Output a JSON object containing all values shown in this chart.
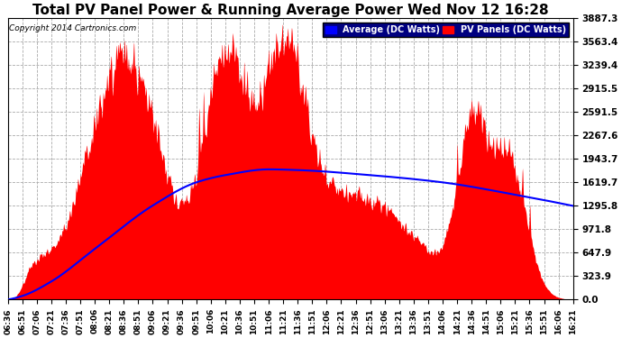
{
  "title": "Total PV Panel Power & Running Average Power Wed Nov 12 16:28",
  "copyright": "Copyright 2014 Cartronics.com",
  "ylabel_right_ticks": [
    0.0,
    323.9,
    647.9,
    971.8,
    1295.8,
    1619.7,
    1943.7,
    2267.6,
    2591.5,
    2915.5,
    3239.4,
    3563.4,
    3887.3
  ],
  "ymax": 3887.3,
  "ymin": 0.0,
  "x_tick_labels": [
    "06:36",
    "06:51",
    "07:06",
    "07:21",
    "07:36",
    "07:51",
    "08:06",
    "08:21",
    "08:36",
    "08:51",
    "09:06",
    "09:21",
    "09:36",
    "09:51",
    "10:06",
    "10:21",
    "10:36",
    "10:51",
    "11:06",
    "11:21",
    "11:36",
    "11:51",
    "12:06",
    "12:21",
    "12:36",
    "12:51",
    "13:06",
    "13:21",
    "13:36",
    "13:51",
    "14:06",
    "14:21",
    "14:36",
    "14:51",
    "15:06",
    "15:21",
    "15:36",
    "15:51",
    "16:06",
    "16:21"
  ],
  "legend_avg_label": "Average (DC Watts)",
  "legend_pv_label": "PV Panels (DC Watts)",
  "avg_color": "#0000ff",
  "pv_color": "#ff0000",
  "bg_color": "#ffffff",
  "grid_color": "#aaaaaa",
  "title_fontsize": 11,
  "figsize": [
    6.9,
    3.75
  ],
  "dpi": 100
}
